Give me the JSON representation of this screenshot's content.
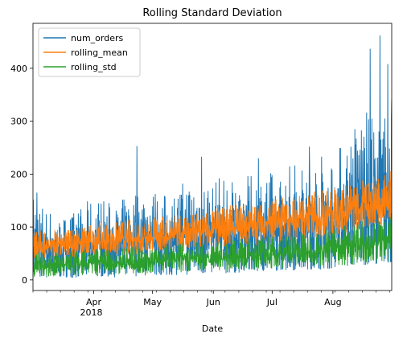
{
  "chart_data": {
    "type": "line",
    "title": "Rolling Standard Deviation",
    "xlabel": "Date",
    "ylabel": "",
    "x_range": [
      "2018-03-01",
      "2018-08-31"
    ],
    "ylim": [
      -20,
      485
    ],
    "y_ticks": [
      0,
      100,
      200,
      300,
      400
    ],
    "x_ticks": [
      {
        "date": "2018-04-01",
        "label": "Apr",
        "sublabel": "2018"
      },
      {
        "date": "2018-05-01",
        "label": "May",
        "sublabel": ""
      },
      {
        "date": "2018-06-01",
        "label": "Jun",
        "sublabel": ""
      },
      {
        "date": "2018-07-01",
        "label": "Jul",
        "sublabel": ""
      },
      {
        "date": "2018-08-01",
        "label": "Aug",
        "sublabel": ""
      }
    ],
    "legend": {
      "position": "upper-left"
    },
    "grid": false,
    "series": [
      {
        "name": "num_orders",
        "color": "#1f77b4",
        "x": [
          "2018-03-01",
          "2018-03-08",
          "2018-03-15",
          "2018-03-22",
          "2018-03-29",
          "2018-04-05",
          "2018-04-12",
          "2018-04-19",
          "2018-04-26",
          "2018-05-03",
          "2018-05-10",
          "2018-05-17",
          "2018-05-24",
          "2018-05-31",
          "2018-06-07",
          "2018-06-14",
          "2018-06-21",
          "2018-06-28",
          "2018-07-05",
          "2018-07-12",
          "2018-07-19",
          "2018-07-26",
          "2018-08-02",
          "2018-08-09",
          "2018-08-16",
          "2018-08-23",
          "2018-08-31"
        ],
        "low": [
          3,
          4,
          5,
          4,
          5,
          6,
          5,
          6,
          8,
          8,
          9,
          9,
          10,
          12,
          12,
          14,
          15,
          16,
          18,
          18,
          20,
          20,
          22,
          25,
          28,
          30,
          32
        ],
        "high": [
          165,
          140,
          120,
          130,
          150,
          160,
          140,
          165,
          180,
          170,
          160,
          190,
          200,
          190,
          200,
          190,
          200,
          210,
          200,
          230,
          220,
          240,
          245,
          280,
          330,
          300,
          340
        ],
        "peaks": [
          {
            "x": "2018-03-03",
            "y": 165
          },
          {
            "x": "2018-04-23",
            "y": 253
          },
          {
            "x": "2018-05-26",
            "y": 233
          },
          {
            "x": "2018-06-24",
            "y": 230
          },
          {
            "x": "2018-07-20",
            "y": 252
          },
          {
            "x": "2018-08-20",
            "y": 437
          },
          {
            "x": "2018-08-25",
            "y": 462
          },
          {
            "x": "2018-08-29",
            "y": 408
          },
          {
            "x": "2018-08-31",
            "y": 342
          }
        ]
      },
      {
        "name": "rolling_mean",
        "color": "#ff7f0e",
        "x": [
          "2018-03-01",
          "2018-03-08",
          "2018-03-15",
          "2018-03-22",
          "2018-03-29",
          "2018-04-05",
          "2018-04-12",
          "2018-04-19",
          "2018-04-26",
          "2018-05-03",
          "2018-05-10",
          "2018-05-17",
          "2018-05-24",
          "2018-05-31",
          "2018-06-07",
          "2018-06-14",
          "2018-06-21",
          "2018-06-28",
          "2018-07-05",
          "2018-07-12",
          "2018-07-19",
          "2018-07-26",
          "2018-08-02",
          "2018-08-09",
          "2018-08-16",
          "2018-08-23",
          "2018-08-31"
        ],
        "low": [
          35,
          38,
          40,
          40,
          42,
          44,
          45,
          47,
          48,
          50,
          52,
          53,
          55,
          57,
          60,
          62,
          65,
          67,
          70,
          72,
          75,
          78,
          82,
          86,
          92,
          98,
          105
        ],
        "high": [
          90,
          95,
          95,
          100,
          105,
          108,
          110,
          115,
          118,
          120,
          122,
          125,
          130,
          135,
          140,
          143,
          145,
          150,
          155,
          160,
          165,
          170,
          175,
          182,
          190,
          198,
          208
        ]
      },
      {
        "name": "rolling_std",
        "color": "#2ca02c",
        "x": [
          "2018-03-01",
          "2018-03-08",
          "2018-03-15",
          "2018-03-22",
          "2018-03-29",
          "2018-04-05",
          "2018-04-12",
          "2018-04-19",
          "2018-04-26",
          "2018-05-03",
          "2018-05-10",
          "2018-05-17",
          "2018-05-24",
          "2018-05-31",
          "2018-06-07",
          "2018-06-14",
          "2018-06-21",
          "2018-06-28",
          "2018-07-05",
          "2018-07-12",
          "2018-07-19",
          "2018-07-26",
          "2018-08-02",
          "2018-08-09",
          "2018-08-16",
          "2018-08-23",
          "2018-08-31"
        ],
        "low": [
          5,
          6,
          7,
          8,
          8,
          9,
          10,
          10,
          12,
          12,
          13,
          14,
          15,
          15,
          16,
          18,
          18,
          20,
          22,
          22,
          24,
          25,
          26,
          28,
          30,
          32,
          35
        ],
        "high": [
          55,
          50,
          52,
          55,
          58,
          60,
          60,
          62,
          65,
          66,
          68,
          70,
          72,
          74,
          75,
          78,
          80,
          82,
          85,
          88,
          90,
          95,
          100,
          105,
          115,
          112,
          120
        ]
      }
    ]
  }
}
